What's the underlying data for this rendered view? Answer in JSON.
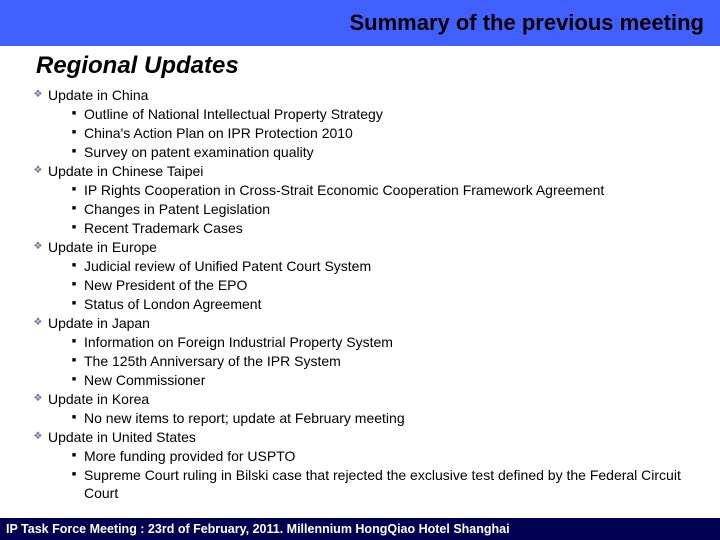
{
  "header": {
    "title": "Summary of the previous meeting",
    "background_color": "#4060ff",
    "title_color": "#000000",
    "title_fontsize": 22
  },
  "subtitle": {
    "text": "Regional Updates",
    "fontsize": 24
  },
  "sections": [
    {
      "label": "Update in China",
      "items": [
        "Outline of National Intellectual Property Strategy",
        "China's Action Plan on IPR Protection 2010",
        "Survey on patent examination quality"
      ]
    },
    {
      "label": "Update in Chinese Taipei",
      "items": [
        "IP Rights Cooperation in Cross-Strait Economic Cooperation Framework Agreement",
        "Changes in Patent Legislation",
        "Recent Trademark Cases"
      ]
    },
    {
      "label": "Update in Europe",
      "items": [
        "Judicial review of Unified Patent Court System",
        "New President of the EPO",
        "Status of London Agreement"
      ]
    },
    {
      "label": "Update in Japan",
      "items": [
        "Information on Foreign Industrial Property System",
        "The 125th Anniversary of the IPR System",
        "New Commissioner"
      ]
    },
    {
      "label": "Update in Korea",
      "items": [
        "No new items to report; update at February meeting"
      ]
    },
    {
      "label": "Update in United States",
      "items": [
        "More funding provided for USPTO",
        "Supreme Court ruling in Bilski case that rejected the exclusive test defined by the Federal Circuit Court"
      ]
    }
  ],
  "bullets": {
    "top_glyph": "❖",
    "top_color": "#7070a0",
    "sub_glyph": "■",
    "sub_color": "#000000"
  },
  "footer": {
    "text": "IP Task Force Meeting : 23rd of February, 2011. Millennium HongQiao Hotel Shanghai",
    "background_color": "#000050",
    "text_color": "#ffffff",
    "fontsize": 12.5
  }
}
